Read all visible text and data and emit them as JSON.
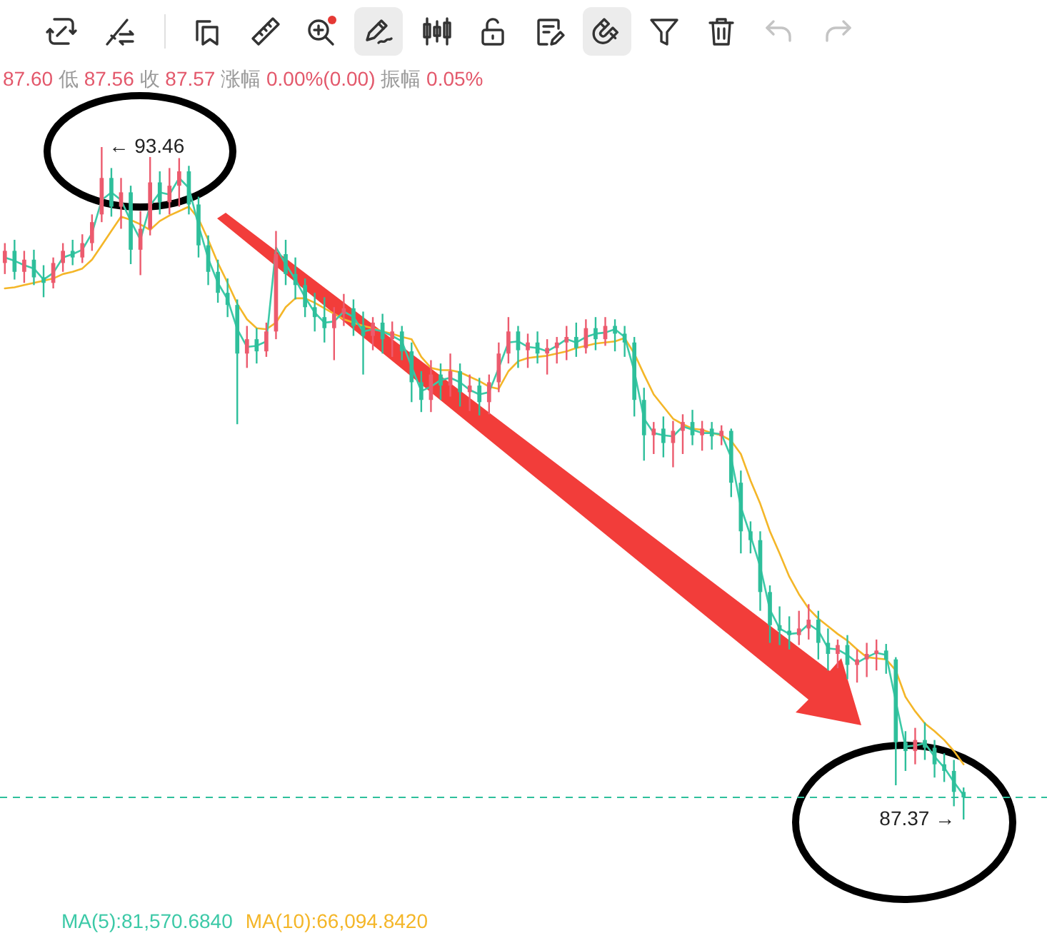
{
  "chart_data": {
    "type": "candlestick",
    "categories": [
      null,
      null,
      null,
      null,
      null,
      null,
      null,
      null,
      null,
      null,
      null,
      null,
      null,
      null,
      null,
      null,
      null,
      null,
      null,
      null,
      null,
      null,
      null,
      null,
      null,
      null,
      null,
      null,
      null,
      null,
      null,
      null,
      null,
      null,
      null,
      null,
      null,
      null,
      null,
      null,
      null,
      null,
      null,
      null,
      null,
      null,
      null,
      null,
      null,
      null,
      null,
      null,
      null,
      null,
      null,
      null,
      null,
      null,
      null,
      null,
      null,
      null,
      null,
      null,
      null,
      null,
      null,
      null,
      null,
      null,
      null,
      null,
      null,
      null,
      null,
      null,
      null,
      null,
      null,
      null,
      null,
      null,
      null,
      null,
      null,
      null,
      null,
      null,
      null,
      null,
      null,
      null,
      null,
      null,
      null,
      null,
      null,
      null,
      null,
      null
    ],
    "ohlc": [
      [
        92.41,
        92.59,
        92.31,
        92.52
      ],
      [
        92.52,
        92.62,
        92.26,
        92.33
      ],
      [
        92.33,
        92.52,
        92.23,
        92.44
      ],
      [
        92.44,
        92.53,
        92.21,
        92.28
      ],
      [
        92.28,
        92.39,
        92.1,
        92.23
      ],
      [
        92.23,
        92.46,
        92.18,
        92.41
      ],
      [
        92.41,
        92.59,
        92.33,
        92.52
      ],
      [
        92.52,
        92.62,
        92.39,
        92.46
      ],
      [
        92.46,
        92.67,
        92.41,
        92.59
      ],
      [
        92.59,
        92.85,
        92.52,
        92.78
      ],
      [
        92.85,
        93.46,
        92.78,
        93.18
      ],
      [
        93.18,
        93.27,
        92.83,
        92.92
      ],
      [
        92.92,
        93.18,
        92.72,
        93.05
      ],
      [
        93.05,
        93.11,
        92.4,
        92.53
      ],
      [
        92.53,
        92.88,
        92.3,
        92.72
      ],
      [
        92.72,
        93.37,
        92.66,
        93.14
      ],
      [
        93.14,
        93.24,
        92.85,
        92.96
      ],
      [
        92.96,
        93.27,
        92.85,
        93.11
      ],
      [
        93.11,
        93.36,
        92.92,
        93.24
      ],
      [
        93.24,
        93.29,
        92.85,
        92.94
      ],
      [
        92.94,
        93.01,
        92.46,
        92.57
      ],
      [
        92.57,
        92.66,
        92.21,
        92.33
      ],
      [
        92.33,
        92.44,
        92.05,
        92.14
      ],
      [
        92.14,
        92.27,
        91.92,
        92.03
      ],
      [
        92.03,
        92.08,
        90.95,
        91.59
      ],
      [
        91.59,
        91.84,
        91.46,
        91.72
      ],
      [
        91.72,
        91.82,
        91.5,
        91.61
      ],
      [
        91.61,
        91.87,
        91.56,
        91.79
      ],
      [
        91.79,
        92.7,
        91.72,
        92.49
      ],
      [
        92.49,
        92.62,
        92.21,
        92.31
      ],
      [
        92.31,
        92.46,
        92.08,
        92.21
      ],
      [
        92.21,
        92.27,
        91.92,
        92.01
      ],
      [
        92.01,
        92.14,
        91.79,
        91.92
      ],
      [
        91.92,
        92.1,
        91.69,
        91.82
      ],
      [
        91.82,
        92.01,
        91.53,
        91.95
      ],
      [
        91.95,
        92.13,
        91.84,
        92.0
      ],
      [
        92.0,
        92.08,
        91.75,
        91.84
      ],
      [
        91.84,
        91.97,
        91.4,
        91.75
      ],
      [
        91.75,
        91.92,
        91.62,
        91.87
      ],
      [
        91.87,
        91.95,
        91.59,
        91.72
      ],
      [
        91.72,
        91.88,
        91.56,
        91.79
      ],
      [
        91.79,
        91.84,
        91.53,
        91.61
      ],
      [
        91.61,
        91.69,
        91.15,
        91.33
      ],
      [
        91.33,
        91.43,
        91.06,
        91.17
      ],
      [
        91.17,
        91.53,
        91.06,
        91.4
      ],
      [
        91.4,
        91.5,
        91.17,
        91.3
      ],
      [
        91.3,
        91.59,
        91.2,
        91.43
      ],
      [
        91.43,
        91.5,
        91.11,
        91.24
      ],
      [
        91.24,
        91.4,
        91.07,
        91.3
      ],
      [
        91.3,
        91.37,
        91.03,
        91.15
      ],
      [
        91.15,
        91.4,
        91.04,
        91.33
      ],
      [
        91.33,
        91.69,
        91.24,
        91.59
      ],
      [
        91.59,
        91.92,
        91.5,
        91.79
      ],
      [
        91.79,
        91.84,
        91.46,
        91.62
      ],
      [
        91.62,
        91.77,
        91.46,
        91.69
      ],
      [
        91.69,
        91.79,
        91.5,
        91.59
      ],
      [
        91.59,
        91.72,
        91.4,
        91.64
      ],
      [
        91.64,
        91.74,
        91.5,
        91.69
      ],
      [
        91.69,
        91.84,
        91.53,
        91.74
      ],
      [
        91.74,
        91.87,
        91.56,
        91.64
      ],
      [
        91.64,
        91.9,
        91.59,
        91.82
      ],
      [
        91.82,
        91.92,
        91.62,
        91.72
      ],
      [
        91.72,
        91.92,
        91.66,
        91.84
      ],
      [
        91.84,
        91.9,
        91.61,
        91.77
      ],
      [
        91.77,
        91.84,
        91.56,
        91.69
      ],
      [
        91.69,
        91.74,
        91.02,
        91.17
      ],
      [
        91.17,
        91.28,
        90.62,
        90.85
      ],
      [
        90.85,
        90.97,
        90.68,
        90.91
      ],
      [
        90.91,
        91.02,
        90.65,
        90.78
      ],
      [
        90.78,
        90.98,
        90.56,
        90.89
      ],
      [
        90.89,
        91.04,
        90.68,
        90.97
      ],
      [
        90.97,
        91.08,
        90.76,
        90.85
      ],
      [
        90.85,
        90.98,
        90.71,
        90.91
      ],
      [
        90.91,
        90.97,
        90.72,
        90.84
      ],
      [
        90.84,
        90.94,
        90.76,
        90.89
      ],
      [
        90.89,
        90.91,
        90.29,
        90.42
      ],
      [
        90.42,
        90.53,
        89.78,
        89.98
      ],
      [
        89.98,
        90.07,
        89.78,
        89.9
      ],
      [
        89.9,
        89.98,
        89.26,
        89.43
      ],
      [
        89.43,
        89.49,
        88.97,
        89.13
      ],
      [
        89.13,
        89.3,
        88.95,
        89.08
      ],
      [
        89.08,
        89.21,
        88.91,
        89.04
      ],
      [
        89.04,
        89.26,
        88.95,
        89.1
      ],
      [
        89.1,
        89.32,
        89.0,
        89.18
      ],
      [
        89.18,
        89.26,
        88.82,
        88.97
      ],
      [
        88.97,
        89.1,
        88.72,
        88.87
      ],
      [
        88.87,
        89.0,
        88.74,
        88.95
      ],
      [
        88.95,
        89.04,
        88.64,
        88.77
      ],
      [
        88.77,
        88.91,
        88.61,
        88.82
      ],
      [
        88.82,
        88.97,
        88.66,
        88.87
      ],
      [
        88.87,
        89.0,
        88.72,
        88.9
      ],
      [
        88.9,
        88.96,
        88.69,
        88.82
      ],
      [
        88.82,
        88.84,
        87.68,
        88.07
      ],
      [
        88.07,
        88.17,
        87.81,
        87.99
      ],
      [
        87.99,
        88.2,
        87.87,
        88.09
      ],
      [
        88.09,
        88.25,
        87.91,
        88.02
      ],
      [
        88.02,
        88.09,
        87.75,
        87.87
      ],
      [
        87.87,
        87.97,
        87.71,
        87.81
      ],
      [
        87.81,
        87.91,
        87.49,
        87.62
      ],
      [
        87.62,
        87.66,
        87.37,
        87.57
      ]
    ],
    "colors": [
      "#ec5b6e",
      "#2ebf9b",
      "#ec5b6e",
      "#2ebf9b",
      "#2ebf9b",
      "#ec5b6e",
      "#ec5b6e",
      "#2ebf9b",
      "#ec5b6e",
      "#ec5b6e",
      "#ec5b6e",
      "#2ebf9b",
      "#ec5b6e",
      "#2ebf9b",
      "#ec5b6e",
      "#ec5b6e",
      "#2ebf9b",
      "#ec5b6e",
      "#ec5b6e",
      "#2ebf9b",
      "#2ebf9b",
      "#2ebf9b",
      "#2ebf9b",
      "#2ebf9b",
      "#2ebf9b",
      "#ec5b6e",
      "#2ebf9b",
      "#ec5b6e",
      "#ec5b6e",
      "#2ebf9b",
      "#2ebf9b",
      "#2ebf9b",
      "#2ebf9b",
      "#2ebf9b",
      "#ec5b6e",
      "#ec5b6e",
      "#2ebf9b",
      "#2ebf9b",
      "#ec5b6e",
      "#2ebf9b",
      "#ec5b6e",
      "#2ebf9b",
      "#2ebf9b",
      "#2ebf9b",
      "#ec5b6e",
      "#2ebf9b",
      "#ec5b6e",
      "#2ebf9b",
      "#ec5b6e",
      "#2ebf9b",
      "#ec5b6e",
      "#ec5b6e",
      "#ec5b6e",
      "#2ebf9b",
      "#ec5b6e",
      "#2ebf9b",
      "#ec5b6e",
      "#ec5b6e",
      "#ec5b6e",
      "#2ebf9b",
      "#ec5b6e",
      "#2ebf9b",
      "#ec5b6e",
      "#2ebf9b",
      "#2ebf9b",
      "#2ebf9b",
      "#2ebf9b",
      "#ec5b6e",
      "#2ebf9b",
      "#ec5b6e",
      "#ec5b6e",
      "#2ebf9b",
      "#ec5b6e",
      "#2ebf9b",
      "#ec5b6e",
      "#2ebf9b",
      "#2ebf9b",
      "#2ebf9b",
      "#2ebf9b",
      "#2ebf9b",
      "#2ebf9b",
      "#2ebf9b",
      "#ec5b6e",
      "#ec5b6e",
      "#2ebf9b",
      "#2ebf9b",
      "#ec5b6e",
      "#2ebf9b",
      "#ec5b6e",
      "#ec5b6e",
      "#ec5b6e",
      "#2ebf9b",
      "#2ebf9b",
      "#2ebf9b",
      "#ec5b6e",
      "#2ebf9b",
      "#2ebf9b",
      "#2ebf9b",
      "#2ebf9b",
      "#2ebf9b"
    ],
    "series": [
      {
        "type": "line",
        "color": "#3cc9a7",
        "values": [
          92.46,
          92.43,
          92.39,
          92.36,
          92.26,
          92.32,
          92.46,
          92.49,
          92.53,
          92.68,
          92.98,
          93.05,
          92.98,
          92.79,
          92.62,
          92.93,
          93.05,
          93.03,
          93.18,
          93.09,
          92.75,
          92.45,
          92.23,
          92.08,
          91.81,
          91.65,
          91.66,
          91.7,
          92.55,
          92.4,
          92.26,
          92.1,
          91.96,
          91.87,
          91.88,
          91.97,
          91.92,
          91.79,
          91.81,
          91.79,
          91.75,
          91.7,
          91.47,
          91.25,
          91.29,
          91.35,
          91.37,
          91.33,
          91.26,
          91.22,
          91.24,
          91.46,
          91.69,
          91.7,
          91.65,
          91.64,
          91.61,
          91.66,
          91.72,
          91.69,
          91.74,
          91.77,
          91.78,
          91.81,
          91.74,
          91.43,
          91.0,
          90.87,
          90.85,
          90.84,
          90.93,
          90.9,
          90.87,
          90.87,
          90.86,
          90.65,
          90.2,
          89.94,
          89.66,
          89.27,
          89.1,
          89.05,
          89.06,
          89.14,
          89.08,
          88.92,
          88.91,
          88.86,
          88.79,
          88.84,
          88.88,
          88.86,
          88.44,
          88.03,
          88.04,
          88.06,
          87.94,
          87.84,
          87.71,
          87.59
        ]
      },
      {
        "type": "line",
        "color": "#f4b628",
        "values": [
          92.18,
          92.19,
          92.21,
          92.23,
          92.25,
          92.27,
          92.31,
          92.33,
          92.36,
          92.44,
          92.57,
          92.7,
          92.83,
          92.8,
          92.76,
          92.71,
          92.79,
          92.84,
          92.88,
          92.92,
          92.81,
          92.62,
          92.41,
          92.23,
          92.04,
          91.9,
          91.82,
          91.81,
          91.87,
          92.01,
          92.09,
          92.09,
          92.05,
          92.0,
          91.95,
          91.9,
          91.87,
          91.84,
          91.82,
          91.79,
          91.77,
          91.74,
          91.72,
          91.56,
          91.46,
          91.44,
          91.44,
          91.42,
          91.38,
          91.34,
          91.29,
          91.27,
          91.43,
          91.52,
          91.55,
          91.56,
          91.57,
          91.59,
          91.61,
          91.64,
          91.66,
          91.68,
          91.69,
          91.7,
          91.73,
          91.59,
          91.4,
          91.22,
          91.11,
          91.0,
          90.95,
          90.91,
          90.9,
          90.87,
          90.85,
          90.8,
          90.68,
          90.44,
          90.23,
          89.98,
          89.78,
          89.57,
          89.41,
          89.28,
          89.19,
          89.12,
          89.05,
          88.99,
          88.91,
          88.84,
          88.83,
          88.82,
          88.72,
          88.48,
          88.35,
          88.24,
          88.17,
          88.09,
          87.99,
          87.87
        ]
      }
    ],
    "ref_lines": [
      {
        "axis": "y",
        "value": 87.57,
        "color": "#2ebf9b",
        "line_style": "dashed"
      }
    ],
    "annotations": [
      "87.60 低 87.56 收 87.57 涨幅 0.00%(0.00) 振幅 0.05%",
      "← 93.46",
      "87.37 →",
      "MA(5):81,570.6840",
      "MA(10):66,094.8420"
    ]
  }
}
